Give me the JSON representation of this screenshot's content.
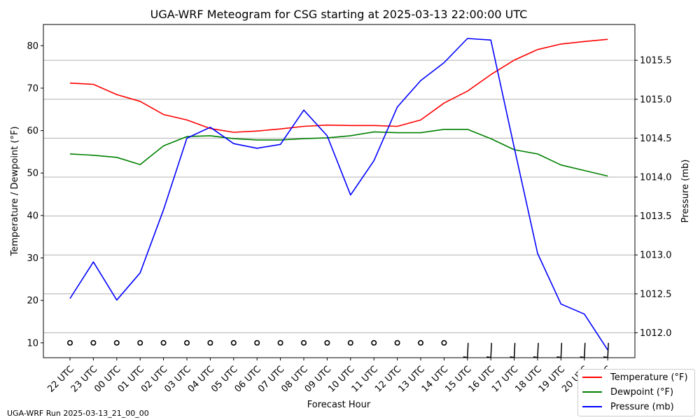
{
  "chart_data": {
    "type": "line",
    "title": "UGA-WRF Meteogram for CSG starting at 2025-03-13 22:00:00 UTC",
    "xlabel": "Forecast Hour",
    "ylabel_left": "Temperature / Dewpoint (°F)",
    "ylabel_right": "Pressure (mb)",
    "categories": [
      "22 UTC",
      "23 UTC",
      "00 UTC",
      "01 UTC",
      "02 UTC",
      "03 UTC",
      "04 UTC",
      "05 UTC",
      "06 UTC",
      "07 UTC",
      "08 UTC",
      "09 UTC",
      "10 UTC",
      "11 UTC",
      "12 UTC",
      "13 UTC",
      "14 UTC",
      "15 UTC",
      "16 UTC",
      "17 UTC",
      "18 UTC",
      "19 UTC",
      "20 UTC",
      "21 UTC"
    ],
    "left_axis": {
      "ylim": [
        6.5,
        85
      ],
      "ticks": [
        10,
        20,
        30,
        40,
        50,
        60,
        70,
        80
      ]
    },
    "right_axis": {
      "ylim": [
        11.48,
        11.96
      ],
      "ticks": [
        1012.0,
        1012.5,
        1013.0,
        1013.5,
        1014.0,
        1014.5,
        1015.0,
        1015.5
      ],
      "ylim_mb": [
        1011.68,
        1015.96
      ]
    },
    "series": [
      {
        "name": "Temperature (°F)",
        "color": "#ff0000",
        "axis": "left",
        "values": [
          71.2,
          70.9,
          68.5,
          66.9,
          63.8,
          62.5,
          60.5,
          59.6,
          59.9,
          60.4,
          61.0,
          61.3,
          61.2,
          61.2,
          61.0,
          62.5,
          66.5,
          69.3,
          73.2,
          76.6,
          79.1,
          80.4,
          81.0,
          81.5
        ]
      },
      {
        "name": "Dewpoint (°F)",
        "color": "#008000",
        "axis": "left",
        "values": [
          54.5,
          54.2,
          53.7,
          52.0,
          56.4,
          58.6,
          58.8,
          58.1,
          57.8,
          57.8,
          58.1,
          58.3,
          58.8,
          59.7,
          59.5,
          59.5,
          60.3,
          60.3,
          58.1,
          55.5,
          54.5,
          51.9,
          50.6,
          49.3
        ]
      },
      {
        "name": "Pressure (mb)",
        "color": "#0000ff",
        "axis": "right",
        "values": [
          1012.44,
          1012.91,
          1012.42,
          1012.77,
          1013.58,
          1014.5,
          1014.64,
          1014.43,
          1014.37,
          1014.42,
          1014.86,
          1014.53,
          1013.77,
          1014.21,
          1014.9,
          1015.24,
          1015.47,
          1015.78,
          1015.76,
          1014.38,
          1013.02,
          1012.37,
          1012.24,
          1011.78
        ]
      }
    ],
    "wind_barbs": {
      "level": 10,
      "calm": [
        true,
        true,
        true,
        true,
        true,
        true,
        true,
        true,
        true,
        true,
        true,
        true,
        true,
        true,
        true,
        true,
        true,
        false,
        false,
        false,
        false,
        false,
        false,
        false
      ]
    },
    "grid": "horizontal",
    "legend_placement": "bottom-right",
    "footer": "UGA-WRF Run 2025-03-13_21_00_00"
  }
}
